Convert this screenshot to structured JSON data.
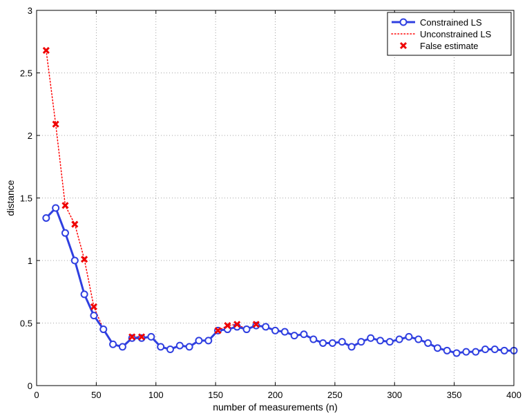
{
  "chart_data": {
    "type": "line",
    "title": "",
    "xlabel": "number of measurements (n)",
    "ylabel": "distance",
    "xlim": [
      0,
      400
    ],
    "ylim": [
      0,
      3
    ],
    "xticks": [
      0,
      50,
      100,
      150,
      200,
      250,
      300,
      350,
      400
    ],
    "yticks": [
      0,
      0.5,
      1,
      1.5,
      2,
      2.5,
      3
    ],
    "xtick_labels": [
      "0",
      "50",
      "100",
      "150",
      "200",
      "250",
      "300",
      "350",
      "400"
    ],
    "ytick_labels": [
      "0",
      "0.5",
      "1",
      "1.5",
      "2",
      "2.5",
      "3"
    ],
    "grid": true,
    "legend_position": "top-right",
    "colors": {
      "constrained": "#2f3fe0",
      "unconstrained": "#ff0000",
      "false_marker": "#ee0000",
      "grid": "#888888",
      "axis": "#000000"
    },
    "x": [
      8,
      16,
      24,
      32,
      40,
      48,
      56,
      64,
      72,
      80,
      88,
      96,
      104,
      112,
      120,
      128,
      136,
      144,
      152,
      160,
      168,
      176,
      184,
      192,
      200,
      208,
      216,
      224,
      232,
      240,
      248,
      256,
      264,
      272,
      280,
      288,
      296,
      304,
      312,
      320,
      328,
      336,
      344,
      352,
      360,
      368,
      376,
      384,
      392,
      400
    ],
    "series": [
      {
        "name": "Constrained LS",
        "style": "solid line with circle markers",
        "values": [
          1.34,
          1.42,
          1.22,
          1.0,
          0.73,
          0.56,
          0.45,
          0.33,
          0.31,
          0.38,
          0.38,
          0.39,
          0.31,
          0.29,
          0.32,
          0.31,
          0.36,
          0.36,
          0.44,
          0.45,
          0.47,
          0.45,
          0.48,
          0.47,
          0.44,
          0.43,
          0.4,
          0.41,
          0.37,
          0.34,
          0.34,
          0.35,
          0.31,
          0.35,
          0.38,
          0.36,
          0.35,
          0.37,
          0.39,
          0.37,
          0.34,
          0.3,
          0.28,
          0.26,
          0.27,
          0.27,
          0.29,
          0.29,
          0.28,
          0.28
        ]
      },
      {
        "name": "Unconstrained LS",
        "style": "dotted line",
        "values": [
          2.68,
          2.09,
          1.44,
          1.29,
          1.01,
          0.63,
          0.45,
          0.33,
          0.31,
          0.39,
          0.39,
          0.39,
          0.31,
          0.29,
          0.32,
          0.31,
          0.36,
          0.36,
          0.44,
          0.48,
          0.49,
          0.45,
          0.49,
          0.47,
          0.44,
          0.43,
          0.4,
          0.41,
          0.37,
          0.34,
          0.34,
          0.35,
          0.31,
          0.35,
          0.38,
          0.36,
          0.35,
          0.37,
          0.39,
          0.37,
          0.34,
          0.3,
          0.28,
          0.26,
          0.27,
          0.27,
          0.29,
          0.29,
          0.28,
          0.28
        ]
      }
    ],
    "false_estimate": {
      "name": "False estimate",
      "style": "x markers",
      "x": [
        8,
        16,
        24,
        32,
        40,
        48,
        80,
        88,
        152,
        160,
        168,
        184
      ],
      "values": [
        2.68,
        2.09,
        1.44,
        1.29,
        1.01,
        0.63,
        0.39,
        0.39,
        0.44,
        0.48,
        0.49,
        0.49
      ]
    },
    "legend": [
      "Constrained LS",
      "Unconstrained LS",
      "False estimate"
    ]
  }
}
